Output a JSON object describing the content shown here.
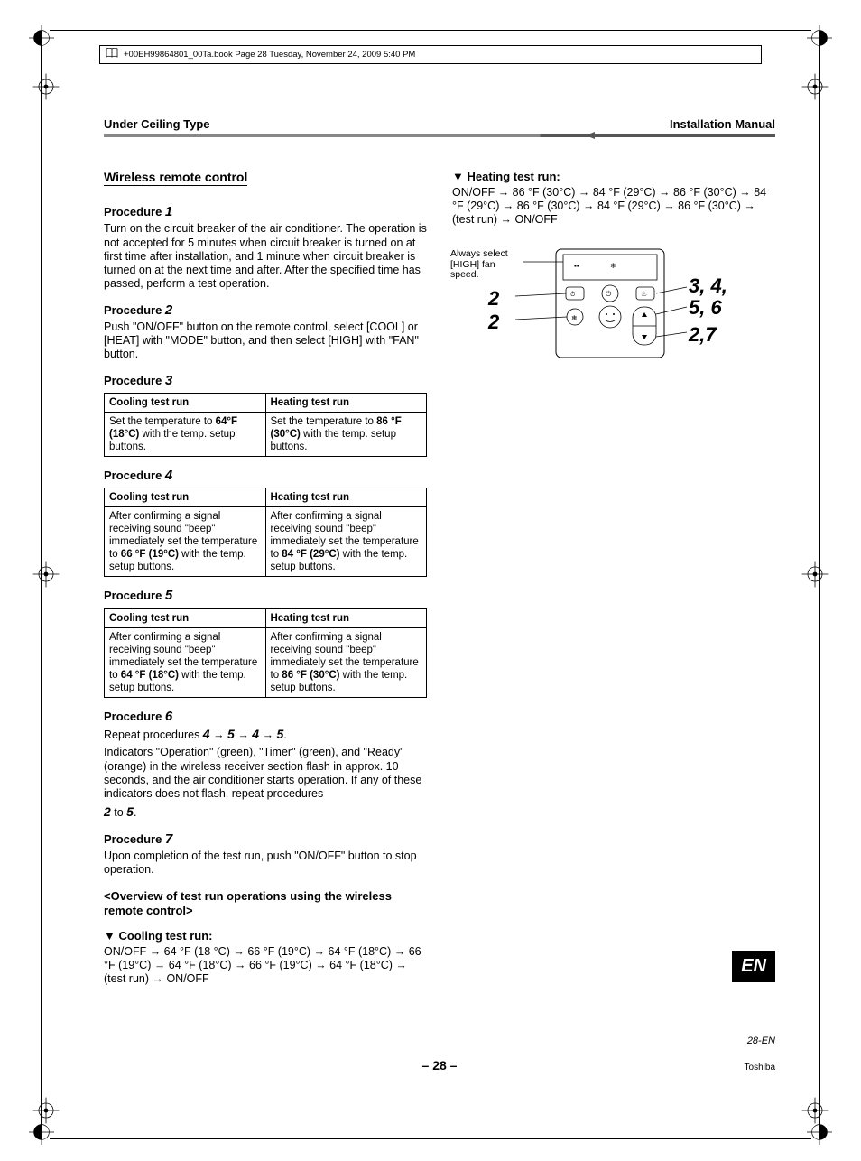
{
  "meta": {
    "line": "+00EH99864801_00Ta.book  Page 28  Tuesday, November 24, 2009  5:40 PM"
  },
  "header": {
    "left": "Under Ceiling Type",
    "right": "Installation Manual"
  },
  "left_col": {
    "section_title": "Wireless remote control",
    "proc1": {
      "head_prefix": "Procedure ",
      "head_num": "1",
      "body": "Turn on the circuit breaker of the air conditioner. The operation is not accepted for 5 minutes when circuit breaker is turned on at first time after installation, and 1 minute when circuit breaker is turned on at the next time and after. After the specified time has passed, perform a test operation."
    },
    "proc2": {
      "head_prefix": "Procedure ",
      "head_num": "2",
      "body": "Push \"ON/OFF\" button on the remote control, select [COOL] or [HEAT] with \"MODE\" button, and then select [HIGH] with \"FAN\" button."
    },
    "proc3": {
      "head_prefix": "Procedure ",
      "head_num": "3",
      "th1": "Cooling test run",
      "th2": "Heating test run",
      "c1a": "Set the temperature to ",
      "c1b": "64°F (18°C)",
      "c1c": " with the temp. setup buttons.",
      "c2a": "Set the temperature to ",
      "c2b": "86 °F (30°C)",
      "c2c": " with the temp. setup buttons."
    },
    "proc4": {
      "head_prefix": "Procedure ",
      "head_num": "4",
      "th1": "Cooling test run",
      "th2": "Heating test run",
      "c1a": "After confirming a signal receiving sound \"beep\" immediately set the temperature to ",
      "c1b": "66 °F (19°C)",
      "c1c": " with the temp. setup buttons.",
      "c2a": "After confirming a signal receiving sound \"beep\" immediately set the temperature to ",
      "c2b": "84 °F (29°C)",
      "c2c": " with the temp. setup buttons."
    },
    "proc5": {
      "head_prefix": "Procedure ",
      "head_num": "5",
      "th1": "Cooling test run",
      "th2": "Heating test run",
      "c1a": "After confirming a signal receiving sound \"beep\" immediately set the temperature to ",
      "c1b": "64 °F (18°C)",
      "c1c": " with the temp. setup buttons.",
      "c2a": "After confirming a signal receiving sound \"beep\" immediately set the temperature to ",
      "c2b": "86 °F (30°C)",
      "c2c": " with the temp. setup buttons."
    },
    "proc6": {
      "head_prefix": "Procedure ",
      "head_num": "6",
      "line1_a": "Repeat procedures ",
      "line1_seq": [
        "4",
        "5",
        "4",
        "5"
      ],
      "body2": "Indicators \"Operation\" (green), \"Timer\" (green), and \"Ready\" (orange) in the wireless receiver section flash in approx. 10 seconds, and the air conditioner starts operation. If any of these indicators does not flash, repeat procedures",
      "range_a": "2",
      "range_mid": " to ",
      "range_b": "5",
      "range_end": "."
    },
    "proc7": {
      "head_prefix": "Procedure ",
      "head_num": "7",
      "body": "Upon completion of the test run, push \"ON/OFF\" button to stop operation."
    },
    "overview": "<Overview of test run operations using the wireless remote control>",
    "cooling": {
      "head": "▼ Cooling test run:",
      "seq": "ON/OFF → 64 °F (18 °C) → 66 °F (19°C) → 64 °F (18°C) → 66 °F (19°C) → 64 °F (18°C) → 66 °F (19°C) → 64 °F (18°C) → (test run) → ON/OFF"
    }
  },
  "right_col": {
    "heating": {
      "head": "▼ Heating test run:",
      "seq": "ON/OFF → 86 °F (30°C) → 84 °F (29°C) → 86 °F (30°C) → 84 °F (29°C) → 86 °F (30°C) → 84 °F (29°C) → 86 °F (30°C) → (test run) → ON/OFF"
    },
    "remote": {
      "note": "Always select [HIGH] fan speed.",
      "left_labels": [
        "2",
        "2"
      ],
      "right_labels": [
        "3, 4,",
        "5, 6",
        "2,7"
      ]
    }
  },
  "badge": "EN",
  "footer": {
    "center": "– 28 –",
    "right_page": "28-EN",
    "brand": "Toshiba"
  }
}
